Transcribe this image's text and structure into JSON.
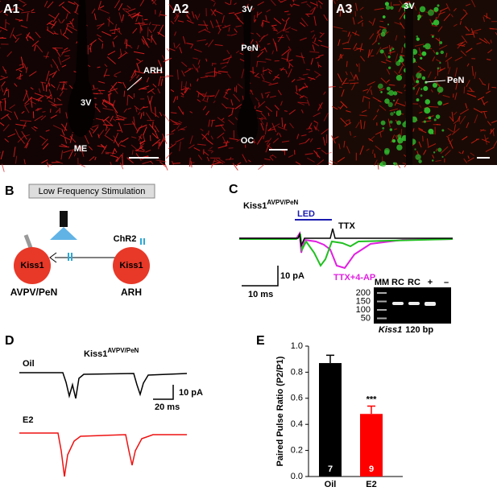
{
  "panel_a": {
    "a1": {
      "label": "A1",
      "texts": [
        "ARH",
        "3V",
        "ME"
      ]
    },
    "a2": {
      "label": "A2",
      "texts": [
        "PeN",
        "3V",
        "OC"
      ]
    },
    "a3": {
      "label": "A3",
      "texts": [
        "3V",
        "PeN"
      ]
    }
  },
  "panel_b": {
    "label": "B",
    "box": "Low Frequency Stimulation",
    "left_cell": "Kiss1",
    "left_region": "AVPV/PeN",
    "right_cell": "Kiss1",
    "right_region": "ARH",
    "opsin": "ChR2"
  },
  "panel_c": {
    "label": "C",
    "cell": "Kiss1",
    "cell_sup": "AVPV/PeN",
    "led": "LED",
    "ttx": "TTX",
    "ttx_4ap": "TTX+4-AP",
    "scale_y": "10 pA",
    "scale_x": "10 ms",
    "gel": {
      "lanes": [
        "MM",
        "RC",
        "RC",
        "+",
        "–"
      ],
      "ladder": [
        "200",
        "150",
        "100",
        "50"
      ],
      "gene": "Kiss1",
      "size": "120 bp"
    }
  },
  "panel_d": {
    "label": "D",
    "cell": "Kiss1",
    "cell_sup": "AVPV/PeN",
    "oil": "Oil",
    "e2": "E2",
    "scale_y": "10 pA",
    "scale_x": "20 ms"
  },
  "panel_e": {
    "label": "E"
  },
  "chart_data": {
    "type": "bar",
    "ylabel": "Paired Pulse Ratio (P2/P1)",
    "categories": [
      "Oil",
      "E2"
    ],
    "values": [
      0.87,
      0.48
    ],
    "errors": [
      0.06,
      0.06
    ],
    "colors": [
      "#000000",
      "#ff0000"
    ],
    "n_labels": [
      "7",
      "9"
    ],
    "significance_label": "***",
    "ylim": [
      0,
      1
    ],
    "yticks": [
      {
        "value": 0,
        "label": "0.0"
      },
      0.2,
      0.4,
      0.6,
      0.8,
      {
        "value": 1,
        "label": "1.0"
      }
    ]
  }
}
